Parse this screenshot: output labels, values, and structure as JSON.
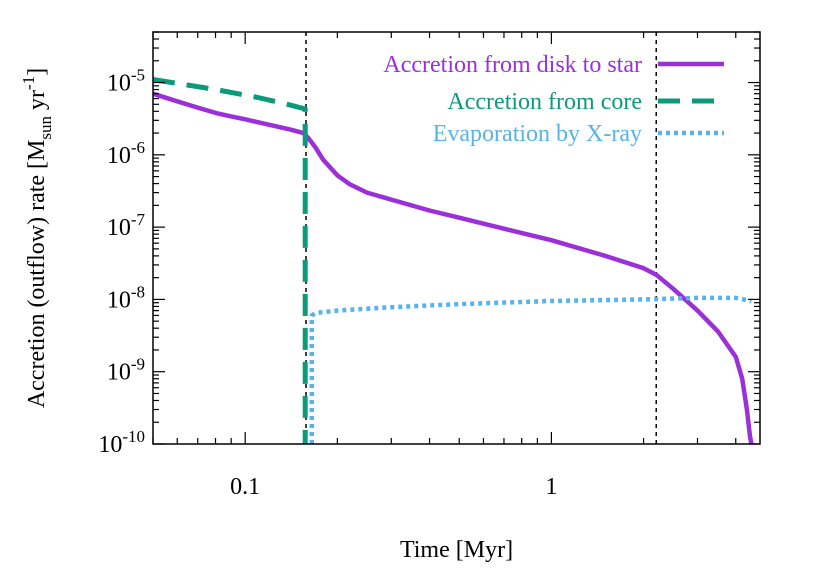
{
  "chart_data": {
    "type": "line",
    "title": "",
    "xlabel": "Time [Myr]",
    "ylabel": {
      "prefix": "Accretion (outflow) rate [M",
      "sub": "sun",
      "mid": " yr",
      "sup": "-1",
      "suffix": "]"
    },
    "xscale": "log",
    "yscale": "log",
    "xlim": [
      0.05,
      4.8
    ],
    "ylim": [
      1e-10,
      5e-05
    ],
    "x_ticks": [
      {
        "value": 0.1,
        "label": "0.1"
      },
      {
        "value": 1,
        "label": "1"
      }
    ],
    "y_ticks": [
      {
        "value": 1e-10,
        "base": "10",
        "exp": "-10"
      },
      {
        "value": 1e-09,
        "base": "10",
        "exp": "-9"
      },
      {
        "value": 1e-08,
        "base": "10",
        "exp": "-8"
      },
      {
        "value": 1e-07,
        "base": "10",
        "exp": "-7"
      },
      {
        "value": 1e-06,
        "base": "10",
        "exp": "-6"
      },
      {
        "value": 1e-05,
        "base": "10",
        "exp": "-5"
      }
    ],
    "vertical_markers": [
      0.158,
      2.2
    ],
    "legend_position": "top-right",
    "series": [
      {
        "name": "Accretion from disk to star",
        "color": "#9b30d9",
        "style": "solid",
        "x": [
          0.05,
          0.06,
          0.07,
          0.08,
          0.09,
          0.1,
          0.12,
          0.14,
          0.155,
          0.16,
          0.17,
          0.18,
          0.2,
          0.22,
          0.25,
          0.3,
          0.4,
          0.5,
          0.7,
          1.0,
          1.5,
          2.0,
          2.2,
          2.5,
          3.0,
          3.5,
          4.0,
          4.2,
          4.35,
          4.45,
          4.5
        ],
        "y": [
          7e-06,
          5.5e-06,
          4.5e-06,
          3.8e-06,
          3.4e-06,
          3.1e-06,
          2.6e-06,
          2.25e-06,
          2e-06,
          1.75e-06,
          1.25e-06,
          8.5e-07,
          5.2e-07,
          3.9e-07,
          3e-07,
          2.4e-07,
          1.7e-07,
          1.35e-07,
          9.5e-08,
          6.6e-08,
          4e-08,
          2.7e-08,
          2.2e-08,
          1.4e-08,
          7e-09,
          3.6e-09,
          1.6e-09,
          8e-10,
          3e-10,
          1.3e-10,
          1e-10
        ]
      },
      {
        "name": "Accretion from core",
        "color": "#0b9a7c",
        "style": "dashed",
        "x": [
          0.05,
          0.08,
          0.11,
          0.14,
          0.157,
          0.157
        ],
        "y": [
          1.1e-05,
          8e-06,
          6.2e-06,
          4.9e-06,
          4.3e-06,
          1e-10
        ]
      },
      {
        "name": "Evaporation by X-ray",
        "color": "#56b4e9",
        "style": "dotted",
        "x": [
          0.165,
          0.165,
          0.17,
          0.2,
          0.3,
          0.5,
          1.0,
          2.0,
          3.0,
          4.0,
          4.5
        ],
        "y": [
          1e-10,
          6e-09,
          6.5e-09,
          7e-09,
          7.8e-09,
          8.6e-09,
          9.5e-09,
          1e-08,
          1.05e-08,
          1.05e-08,
          9.5e-09
        ]
      }
    ]
  }
}
